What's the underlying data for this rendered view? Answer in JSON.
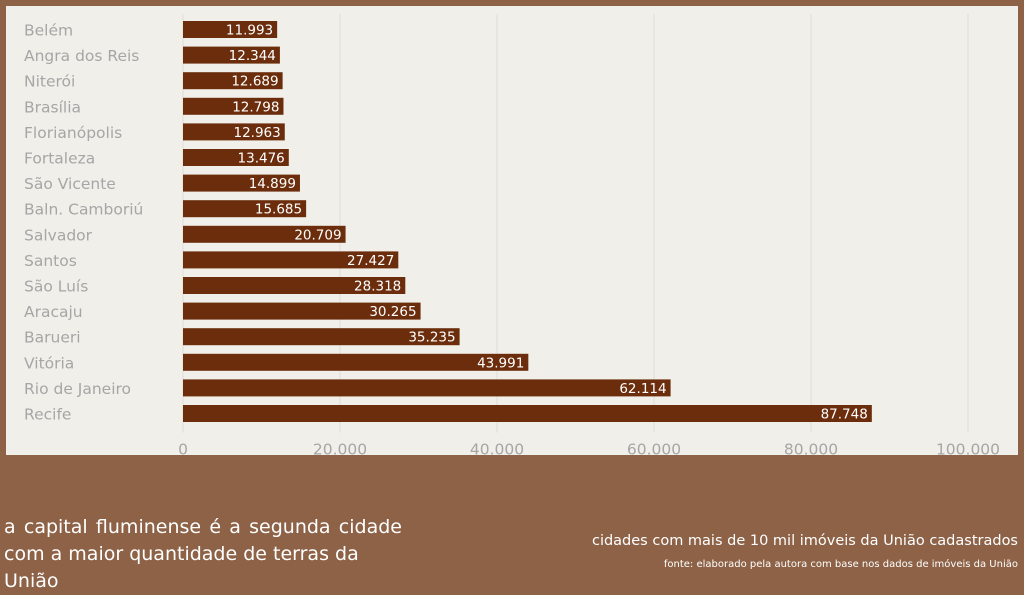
{
  "chart_data": {
    "type": "bar",
    "orientation": "horizontal",
    "categories": [
      "Belém",
      "Angra dos Reis",
      "Niterói",
      "Brasília",
      "Florianópolis",
      "Fortaleza",
      "São Vicente",
      "Baln. Camboriú",
      "Salvador",
      "Santos",
      "São Luís",
      "Aracaju",
      "Barueri",
      "Vitória",
      "Rio de Janeiro",
      "Recife"
    ],
    "values": [
      11993,
      12344,
      12689,
      12798,
      12963,
      13476,
      14899,
      15685,
      20709,
      27427,
      28318,
      30265,
      35235,
      43991,
      62114,
      87748
    ],
    "value_labels": [
      "11.993",
      "12.344",
      "12.689",
      "12.798",
      "12.963",
      "13.476",
      "14.899",
      "15.685",
      "20.709",
      "27.427",
      "28.318",
      "30.265",
      "35.235",
      "43.991",
      "62.114",
      "87.748"
    ],
    "x_ticks": [
      0,
      20000,
      40000,
      60000,
      80000,
      100000
    ],
    "x_tick_labels": [
      "0",
      "20.000",
      "40.000",
      "60.000",
      "80.000",
      "100.000"
    ],
    "xlim": [
      0,
      100000
    ],
    "grid": true,
    "bar_color": "#6b2d0c",
    "label_color": "#ffffff",
    "axis_text_color": "#a6a6a6",
    "grid_color": "#e0ddd6"
  },
  "caption": {
    "line1": "a capital fluminense é a segunda cidade",
    "line2": "com a maior quantidade de terras da União"
  },
  "subtitle": "cidades com mais de 10 mil imóveis da União cadastrados",
  "source": "fonte: elaborado pela autora com base nos dados de imóveis da União",
  "colors": {
    "background": "#8d6247",
    "panel": "#f1efe9",
    "text_on_background": "#ffffff"
  }
}
